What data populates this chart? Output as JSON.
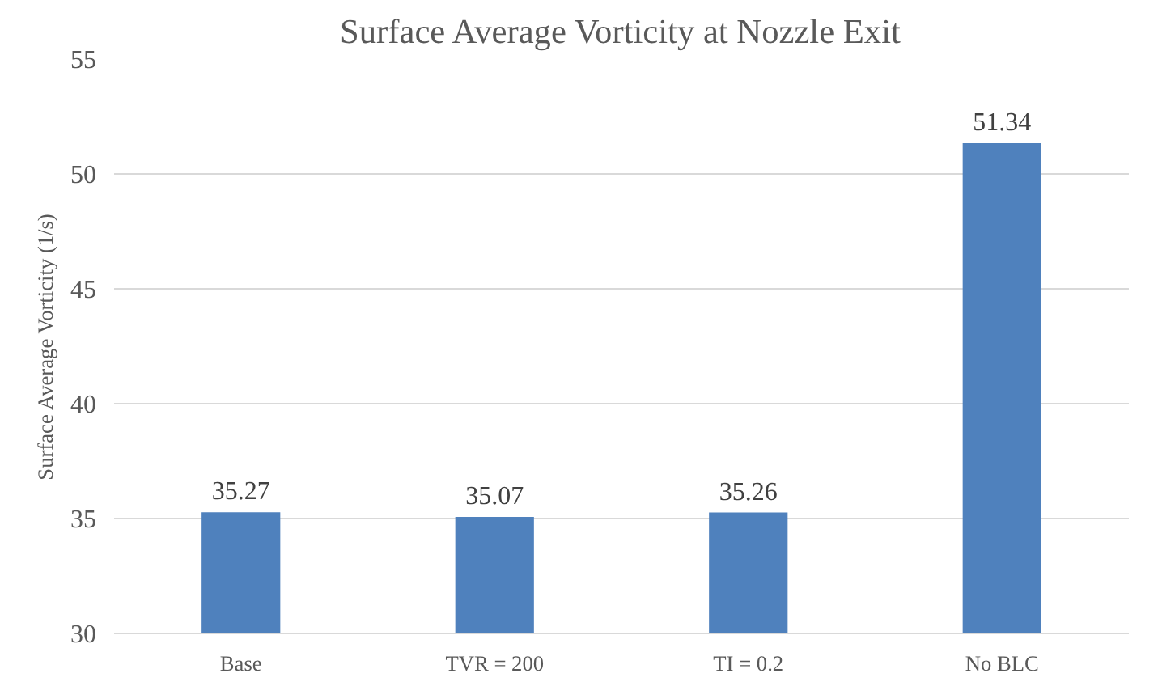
{
  "chart_data": {
    "type": "bar",
    "title": "Surface Average Vorticity at Nozzle Exit",
    "ylabel": "Surface Average Vorticity (1/s)",
    "categories": [
      "Base",
      "TVR = 200",
      "TI = 0.2",
      "No BLC"
    ],
    "values": [
      35.27,
      35.07,
      35.26,
      51.34
    ],
    "color": "#4f81bd",
    "ylim": [
      30,
      55
    ],
    "yticks": [
      30,
      35,
      40,
      45,
      50,
      55
    ],
    "grid": "y",
    "data_labels": true
  }
}
